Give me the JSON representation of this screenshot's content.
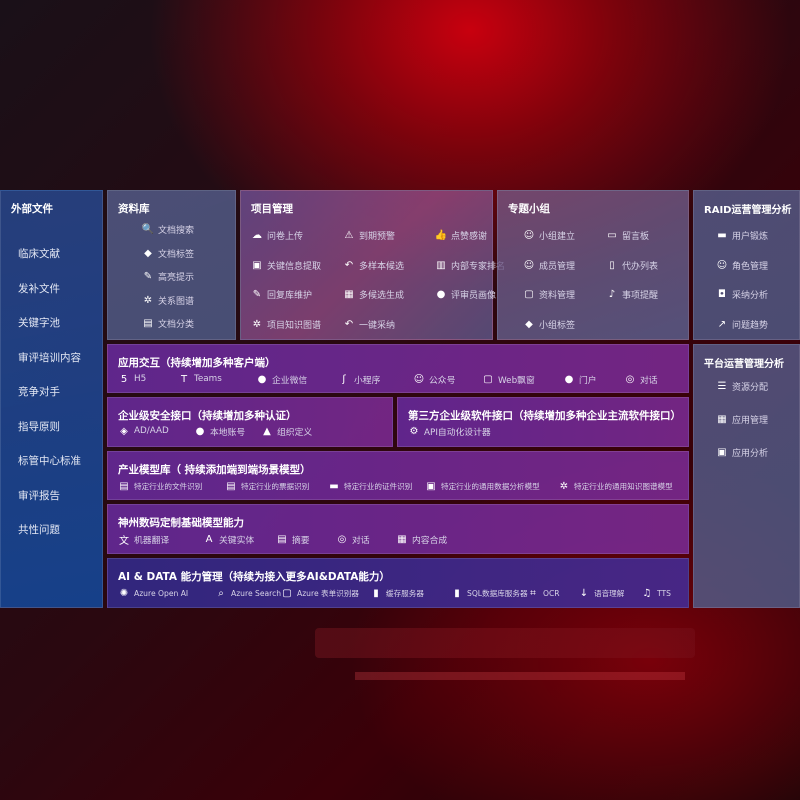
{
  "external": {
    "title": "外部文件",
    "items": [
      "临床文献",
      "发补文件",
      "关键字池",
      "审评培训内容",
      "竞争对手",
      "指导原则",
      "标管中心标准",
      "审评报告",
      "共性问题"
    ]
  },
  "library": {
    "title": "资料库",
    "items": [
      {
        "icon": "document-search-icon",
        "label": "文档搜索"
      },
      {
        "icon": "tag-icon",
        "label": "文档标签"
      },
      {
        "icon": "pen-icon",
        "label": "高亮提示"
      },
      {
        "icon": "graph-icon",
        "label": "关系图谱"
      },
      {
        "icon": "document-classify-icon",
        "label": "文档分类"
      }
    ]
  },
  "project": {
    "title": "项目管理",
    "items": [
      {
        "icon": "cloud-upload-icon",
        "label": "问卷上传"
      },
      {
        "icon": "alarm-icon",
        "label": "到期预警"
      },
      {
        "icon": "thumbs-up-icon",
        "label": "点赞感谢"
      },
      {
        "icon": "extract-icon",
        "label": "关键信息提取"
      },
      {
        "icon": "reply-icon",
        "label": "多样本候选"
      },
      {
        "icon": "ranking-icon",
        "label": "内部专家排名"
      },
      {
        "icon": "edit-icon",
        "label": "回复库维护"
      },
      {
        "icon": "puzzle-icon",
        "label": "多候选生成"
      },
      {
        "icon": "user-icon",
        "label": "评审员画像"
      },
      {
        "icon": "graph-icon",
        "label": "项目知识图谱"
      },
      {
        "icon": "reply-icon",
        "label": "一键采纳"
      }
    ]
  },
  "topic": {
    "title": "专题小组",
    "items": [
      {
        "icon": "group-icon",
        "label": "小组建立"
      },
      {
        "icon": "bbs-icon",
        "label": "留言板"
      },
      {
        "icon": "add-user-icon",
        "label": "成员管理"
      },
      {
        "icon": "clipboard-icon",
        "label": "代办列表"
      },
      {
        "icon": "folder-icon",
        "label": "资料管理"
      },
      {
        "icon": "bell-icon",
        "label": "事项提醒"
      },
      {
        "icon": "tag-icon",
        "label": "小组标签"
      }
    ]
  },
  "raid": {
    "title": "RAID运营管理分析",
    "items": [
      {
        "icon": "id-card-icon",
        "label": "用户锻炼"
      },
      {
        "icon": "group-icon",
        "label": "角色管理"
      },
      {
        "icon": "qa-icon",
        "label": "采纳分析"
      },
      {
        "icon": "trend-icon",
        "label": "问题趋势"
      }
    ]
  },
  "platform": {
    "title": "平台运营管理分析",
    "items": [
      {
        "icon": "checklist-icon",
        "label": "资源分配"
      },
      {
        "icon": "apps-icon",
        "label": "应用管理"
      },
      {
        "icon": "analysis-icon",
        "label": "应用分析"
      }
    ]
  },
  "interaction": {
    "title": "应用交互（持续增加多种客户端）",
    "items": [
      {
        "icon": "html5-icon",
        "label": "H5"
      },
      {
        "icon": "teams-icon",
        "label": "Teams"
      },
      {
        "icon": "wechat-work-icon",
        "label": "企业微信"
      },
      {
        "icon": "mini-program-icon",
        "label": "小程序"
      },
      {
        "icon": "official-account-icon",
        "label": "公众号"
      },
      {
        "icon": "window-icon",
        "label": "Web飘窗"
      },
      {
        "icon": "portal-icon",
        "label": "门户"
      },
      {
        "icon": "chat-icon",
        "label": "对话"
      }
    ]
  },
  "security": {
    "title": "企业级安全接口（持续增加多种认证）",
    "items": [
      {
        "icon": "ad-icon",
        "label": "AD/AAD"
      },
      {
        "icon": "local-account-icon",
        "label": "本地账号"
      },
      {
        "icon": "org-icon",
        "label": "组织定义"
      }
    ]
  },
  "thirdparty": {
    "title": "第三方企业级软件接口（持续增加多种企业主流软件接口）",
    "items": [
      {
        "icon": "gear-icon",
        "label": "API自动化设计器"
      }
    ]
  },
  "industry": {
    "title": "产业模型库（ 持续添加端到端场景模型）",
    "items": [
      {
        "icon": "document-icon",
        "label": "特定行业的文件识别"
      },
      {
        "icon": "receipt-icon",
        "label": "特定行业的票据识别"
      },
      {
        "icon": "id-card-icon",
        "label": "特定行业的证件识别"
      },
      {
        "icon": "chart-icon",
        "label": "特定行业的通用数据分析模型"
      },
      {
        "icon": "graph-icon",
        "label": "特定行业的通用知识图谱模型"
      }
    ]
  },
  "foundation": {
    "title": "神州数码定制基础模型能力",
    "items": [
      {
        "icon": "translate-icon",
        "label": "机器翻译"
      },
      {
        "icon": "entity-icon",
        "label": "关键实体"
      },
      {
        "icon": "summary-icon",
        "label": "摘要"
      },
      {
        "icon": "chat-icon",
        "label": "对话"
      },
      {
        "icon": "puzzle-icon",
        "label": "内容合成"
      }
    ]
  },
  "aidata": {
    "title": "AI & DATA 能力管理（持续为接入更多AI&DATA能力）",
    "items": [
      {
        "icon": "openai-icon",
        "label": "Azure Open AI"
      },
      {
        "icon": "search-icon",
        "label": "Azure Search"
      },
      {
        "icon": "form-recognizer-icon",
        "label": "Azure 表单识别器"
      },
      {
        "icon": "cache-icon",
        "label": "缓存服务器"
      },
      {
        "icon": "sql-icon",
        "label": "SQL数据库服务器"
      },
      {
        "icon": "ocr-icon",
        "label": "OCR"
      },
      {
        "icon": "speech-icon",
        "label": "语音理解"
      },
      {
        "icon": "tts-icon",
        "label": "TTS"
      }
    ]
  }
}
